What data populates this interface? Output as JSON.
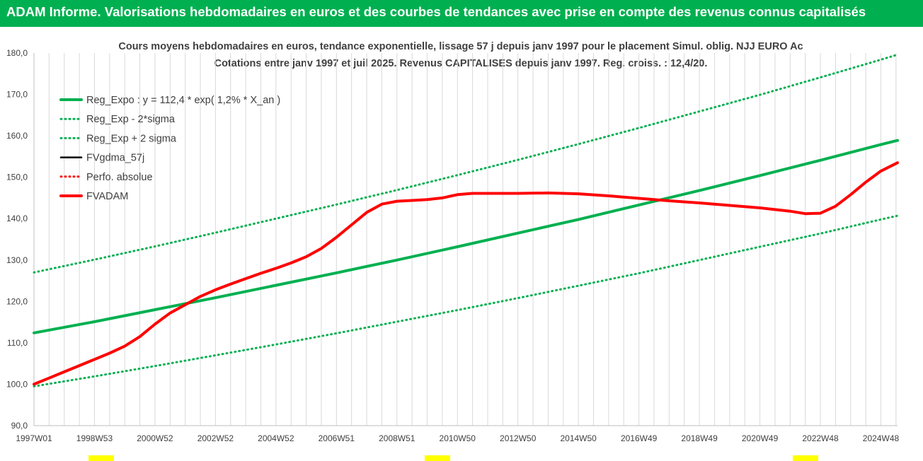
{
  "header": {
    "title": "ADAM Informe. Valorisations hebdomadaires en euros et des courbes de tendances avec prise en compte des revenus connus capitalisés"
  },
  "colors": {
    "header_bg": "#00b050",
    "regression": "#00b050",
    "sigma": "#00b050",
    "fvgdma": "#000000",
    "perfo": "#ff0000",
    "fvadam": "#ff0000",
    "grid": "#d9d9d9",
    "title_text": "#404040"
  },
  "chart_data": {
    "type": "line",
    "title": "Cours moyens hebdomadaires en euros, tendance exponentielle, lissage 57 j depuis janv 1997 pour le placement Simul. oblig. NJJ EURO Ac",
    "subtitle": "Cotations entre janv 1997 et juil 2025. Revenus CAPITALISES depuis janv 1997. Reg. croiss. : 12,4/20.",
    "xlabel": "",
    "ylabel": "",
    "ylim": [
      90,
      180
    ],
    "yticks": [
      "90,0",
      "100,0",
      "110,0",
      "120,0",
      "130,0",
      "140,0",
      "150,0",
      "160,0",
      "170,0",
      "180,0"
    ],
    "xticks": [
      {
        "label": "1997W01",
        "x": 1997.0
      },
      {
        "label": "1998W53",
        "x": 1999.0
      },
      {
        "label": "2000W52",
        "x": 2001.0
      },
      {
        "label": "2002W52",
        "x": 2003.0
      },
      {
        "label": "2004W52",
        "x": 2005.0
      },
      {
        "label": "2006W51",
        "x": 2007.0
      },
      {
        "label": "2008W51",
        "x": 2009.0
      },
      {
        "label": "2010W50",
        "x": 2011.0
      },
      {
        "label": "2012W50",
        "x": 2013.0
      },
      {
        "label": "2014W50",
        "x": 2015.0
      },
      {
        "label": "2016W49",
        "x": 2017.0
      },
      {
        "label": "2018W49",
        "x": 2019.0
      },
      {
        "label": "2020W49",
        "x": 2021.0
      },
      {
        "label": "2022W48",
        "x": 2023.0
      },
      {
        "label": "2024W48",
        "x": 2025.0
      }
    ],
    "xlim": [
      1997.0,
      2025.55
    ],
    "grid": "vertical",
    "legend_placement": "top-left",
    "series": [
      {
        "name": "Reg_Expo : y = 112,4 * exp( 1,2% *  X_an )",
        "style": "solid-thick",
        "x": [
          1997.0,
          1999.0,
          2001.0,
          2003.0,
          2005.0,
          2007.0,
          2009.0,
          2011.0,
          2013.0,
          2015.0,
          2017.0,
          2019.0,
          2021.0,
          2023.0,
          2025.0,
          2025.55
        ],
        "values": [
          112.4,
          115.1,
          118.0,
          120.9,
          123.9,
          126.9,
          130.0,
          133.2,
          136.5,
          139.8,
          143.3,
          146.8,
          150.4,
          154.1,
          157.9,
          158.9
        ]
      },
      {
        "name": "Reg_Exp - 2*sigma",
        "style": "dotted",
        "x": [
          1997.0,
          1999.0,
          2001.0,
          2003.0,
          2005.0,
          2007.0,
          2009.0,
          2011.0,
          2013.0,
          2015.0,
          2017.0,
          2019.0,
          2021.0,
          2023.0,
          2025.0,
          2025.55
        ],
        "values": [
          99.5,
          101.9,
          104.4,
          107.0,
          109.6,
          112.3,
          115.1,
          117.9,
          120.8,
          123.8,
          126.8,
          130.0,
          133.2,
          136.4,
          139.8,
          140.7
        ]
      },
      {
        "name": "Reg_Exp + 2 sigma",
        "style": "dotted",
        "x": [
          1997.0,
          1999.0,
          2001.0,
          2003.0,
          2005.0,
          2007.0,
          2009.0,
          2011.0,
          2013.0,
          2015.0,
          2017.0,
          2019.0,
          2021.0,
          2023.0,
          2025.0,
          2025.55
        ],
        "values": [
          127.0,
          130.1,
          133.3,
          136.6,
          140.0,
          143.4,
          146.9,
          150.5,
          154.2,
          158.0,
          161.9,
          165.9,
          169.9,
          174.1,
          178.4,
          179.6
        ]
      },
      {
        "name": "FVgdma_57j",
        "style": "solid-thin",
        "x": [],
        "values": []
      },
      {
        "name": "Perfo. absolue",
        "style": "dotted",
        "x": [],
        "values": []
      },
      {
        "name": "FVADAM",
        "style": "solid-thick",
        "x": [
          1997.0,
          1997.5,
          1998.0,
          1998.5,
          1999.0,
          1999.5,
          2000.0,
          2000.5,
          2001.0,
          2001.5,
          2002.0,
          2002.5,
          2003.0,
          2003.5,
          2004.0,
          2004.5,
          2005.0,
          2005.5,
          2006.0,
          2006.5,
          2007.0,
          2007.5,
          2008.0,
          2008.5,
          2009.0,
          2009.5,
          2010.0,
          2010.5,
          2011.0,
          2011.5,
          2012.0,
          2013.0,
          2014.0,
          2015.0,
          2016.0,
          2017.0,
          2018.0,
          2019.0,
          2020.0,
          2021.0,
          2022.0,
          2022.5,
          2023.0,
          2023.5,
          2024.0,
          2024.5,
          2025.0,
          2025.55
        ],
        "values": [
          100.0,
          101.5,
          103.0,
          104.5,
          106.0,
          107.5,
          109.2,
          111.5,
          114.5,
          117.2,
          119.2,
          121.2,
          122.8,
          124.2,
          125.5,
          126.8,
          128.0,
          129.3,
          130.8,
          132.8,
          135.5,
          138.5,
          141.5,
          143.5,
          144.2,
          144.4,
          144.6,
          145.0,
          145.8,
          146.1,
          146.1,
          146.1,
          146.2,
          146.0,
          145.5,
          144.9,
          144.3,
          143.8,
          143.2,
          142.6,
          141.8,
          141.2,
          141.3,
          143.0,
          145.8,
          148.8,
          151.5,
          153.5
        ]
      }
    ]
  }
}
